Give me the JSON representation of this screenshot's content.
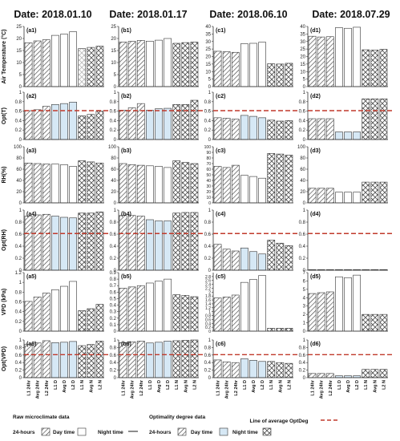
{
  "columns": [
    "Date: 2018.01.10",
    "Date: 2018.01.17",
    "Date: 2018.06.10",
    "Date: 2018.07.29"
  ],
  "categories": [
    "L1 24hr",
    "Avg 24hr",
    "L2 24hr",
    "L1 D",
    "Avg D",
    "L2 D",
    "L1 N",
    "Avg N",
    "L2 N"
  ],
  "colors": {
    "bar_outline": "#333333",
    "hatch": "#444444",
    "raw_day_fill": "#ffffff",
    "opt_day_fill": "#d6e8f5",
    "night_line": "#6f6f6f",
    "avg_line": "#c0392b"
  },
  "legend": {
    "raw_title": "Raw microclimate data",
    "opt_title": "Optimality degree data",
    "item_24h": "24-hours",
    "item_day": "Day time",
    "item_night": "Night time",
    "avg_line": "Line of average OptDeg"
  },
  "chart_data": [
    {
      "type": "bar",
      "row": 0,
      "col": 0,
      "panel": "(a1)",
      "ylabel": "Air Temperature (°C)",
      "ylim": [
        0,
        25
      ],
      "yticks": [
        0,
        5,
        10,
        15,
        20,
        25
      ],
      "values": [
        18.2,
        19.0,
        19.5,
        21.3,
        21.8,
        22.8,
        15.8,
        16.3,
        16.8
      ],
      "faint_first_night": true
    },
    {
      "type": "bar",
      "row": 0,
      "col": 1,
      "panel": "(b1)",
      "ylim": [
        0,
        25
      ],
      "yticks": [
        0,
        5,
        10,
        15,
        20,
        25
      ],
      "values": [
        18.5,
        18.8,
        19.2,
        18.9,
        19.3,
        20.0,
        18.0,
        18.3,
        18.5
      ]
    },
    {
      "type": "bar",
      "row": 0,
      "col": 2,
      "panel": "(c1)",
      "ylim": [
        0,
        40
      ],
      "yticks": [
        0,
        5,
        10,
        15,
        20,
        25,
        30,
        35,
        40
      ],
      "values": [
        23.5,
        23.2,
        22.8,
        28.5,
        28.8,
        29.5,
        15.2,
        15.0,
        15.5
      ]
    },
    {
      "type": "bar",
      "row": 0,
      "col": 3,
      "panel": "(d1)",
      "ylim": [
        0,
        40
      ],
      "yticks": [
        0,
        5,
        10,
        15,
        20,
        25,
        30,
        35,
        40
      ],
      "values": [
        33.5,
        33.0,
        33.2,
        39.2,
        38.8,
        39.5,
        24.5,
        24.3,
        24.8
      ]
    },
    {
      "type": "bar",
      "row": 1,
      "col": 0,
      "panel": "(a2)",
      "ylabel": "Opt(T)",
      "ylim": [
        0,
        1
      ],
      "yticks": [
        0,
        0.2,
        0.4,
        0.6,
        0.8,
        1
      ],
      "values": [
        0.61,
        0.63,
        0.7,
        0.74,
        0.76,
        0.79,
        0.5,
        0.53,
        0.6
      ],
      "avg_line": 0.61
    },
    {
      "type": "bar",
      "row": 1,
      "col": 1,
      "panel": "(b2)",
      "ylim": [
        0,
        1
      ],
      "yticks": [
        0,
        0.2,
        0.4,
        0.6,
        0.8,
        1
      ],
      "values": [
        0.62,
        0.67,
        0.76,
        0.62,
        0.65,
        0.66,
        0.74,
        0.74,
        0.83
      ],
      "avg_line": 0.61
    },
    {
      "type": "bar",
      "row": 1,
      "col": 2,
      "panel": "(c2)",
      "ylim": [
        0,
        1
      ],
      "yticks": [
        0,
        0.2,
        0.4,
        0.6,
        0.8,
        1
      ],
      "values": [
        0.46,
        0.45,
        0.43,
        0.51,
        0.49,
        0.46,
        0.41,
        0.39,
        0.4
      ],
      "avg_line": 0.61
    },
    {
      "type": "bar",
      "row": 1,
      "col": 3,
      "panel": "(d2)",
      "ylim": [
        0,
        1
      ],
      "yticks": [
        0,
        0.2,
        0.4,
        0.6,
        0.8,
        1
      ],
      "values": [
        0.44,
        0.44,
        0.44,
        0.16,
        0.16,
        0.16,
        0.86,
        0.86,
        0.86
      ],
      "avg_line": 0.61
    },
    {
      "type": "bar",
      "row": 2,
      "col": 0,
      "panel": "(a3)",
      "ylabel": "RH(%)",
      "ylim": [
        0,
        100
      ],
      "yticks": [
        0,
        20,
        40,
        60,
        80,
        100
      ],
      "values": [
        71,
        70,
        69,
        69,
        68,
        65,
        75,
        73,
        71
      ]
    },
    {
      "type": "bar",
      "row": 2,
      "col": 1,
      "panel": "(b3)",
      "ylim": [
        0,
        100
      ],
      "yticks": [
        0,
        20,
        40,
        60,
        80,
        100
      ],
      "values": [
        70,
        68,
        67,
        66,
        65,
        63,
        75,
        72,
        70
      ]
    },
    {
      "type": "bar",
      "row": 2,
      "col": 2,
      "panel": "(c3)",
      "ylim": [
        0,
        100
      ],
      "yticks": [
        0,
        10,
        20,
        30,
        40,
        50,
        60,
        70,
        80,
        90,
        100
      ],
      "values": [
        65,
        63,
        67,
        49,
        47,
        44,
        88,
        87,
        85
      ]
    },
    {
      "type": "bar",
      "row": 2,
      "col": 3,
      "panel": "(d3)",
      "ylim": [
        0,
        100
      ],
      "yticks": [
        0,
        20,
        40,
        60,
        80,
        100
      ],
      "values": [
        26,
        26,
        26,
        19,
        19,
        19,
        37,
        37,
        37
      ]
    },
    {
      "type": "bar",
      "row": 3,
      "col": 0,
      "panel": "(a4)",
      "ylabel": "Opt(RH)",
      "ylim": [
        0,
        1
      ],
      "yticks": [
        0,
        0.2,
        0.4,
        0.6,
        0.8,
        1
      ],
      "values": [
        0.9,
        0.92,
        0.93,
        0.9,
        0.88,
        0.87,
        0.95,
        0.95,
        0.97
      ],
      "avg_line": 0.61
    },
    {
      "type": "bar",
      "row": 3,
      "col": 1,
      "panel": "(b4)",
      "ylim": [
        0,
        1
      ],
      "yticks": [
        0,
        0.2,
        0.4,
        0.6,
        0.8,
        1
      ],
      "values": [
        0.91,
        0.91,
        0.9,
        0.84,
        0.82,
        0.82,
        0.95,
        0.96,
        0.96
      ],
      "avg_line": 0.61
    },
    {
      "type": "bar",
      "row": 3,
      "col": 2,
      "panel": "(c4)",
      "ylim": [
        0,
        1
      ],
      "yticks": [
        0,
        0.2,
        0.4,
        0.6,
        0.8,
        1
      ],
      "values": [
        0.43,
        0.35,
        0.32,
        0.37,
        0.31,
        0.27,
        0.5,
        0.45,
        0.41
      ],
      "avg_line": 0.61
    },
    {
      "type": "bar",
      "row": 3,
      "col": 3,
      "panel": "(d4)",
      "ylim": [
        0,
        1
      ],
      "yticks": [
        0,
        0.2,
        0.4,
        0.6,
        0.8,
        1
      ],
      "values": [
        0.01,
        0.01,
        0.01,
        0.01,
        0.01,
        0.01,
        0.01,
        0.01,
        0.01
      ],
      "avg_line": 0.61
    },
    {
      "type": "bar",
      "row": 4,
      "col": 0,
      "panel": "(a5)",
      "ylabel": "VPD (kPa)",
      "ylim": [
        0,
        1.2
      ],
      "yticks": [
        0,
        0.2,
        0.4,
        0.6,
        0.8,
        1,
        1.2
      ],
      "values": [
        0.61,
        0.7,
        0.78,
        0.85,
        0.92,
        1.02,
        0.42,
        0.46,
        0.55
      ]
    },
    {
      "type": "bar",
      "row": 4,
      "col": 1,
      "panel": "(b5)",
      "ylim": [
        0,
        0.9
      ],
      "yticks": [
        0,
        0.1,
        0.2,
        0.3,
        0.4,
        0.5,
        0.6,
        0.7,
        0.8,
        0.9
      ],
      "values": [
        0.66,
        0.68,
        0.7,
        0.74,
        0.77,
        0.8,
        0.56,
        0.55,
        0.53
      ]
    },
    {
      "type": "bar",
      "row": 4,
      "col": 2,
      "panel": "(c5)",
      "ylim": [
        0,
        3
      ],
      "yticks": [
        0,
        0.2,
        0.4,
        0.6,
        0.8,
        1,
        1.2,
        1.4,
        1.6,
        1.8,
        2,
        2.2,
        2.4,
        2.6,
        2.8
      ],
      "values": [
        1.7,
        1.75,
        1.85,
        2.5,
        2.65,
        2.85,
        0.15,
        0.15,
        0.15
      ]
    },
    {
      "type": "bar",
      "row": 4,
      "col": 3,
      "panel": "(d5)",
      "ylim": [
        0,
        7
      ],
      "yticks": [
        0,
        1,
        2,
        3,
        4,
        5,
        6,
        7
      ],
      "values": [
        4.5,
        4.6,
        4.7,
        6.5,
        6.4,
        6.7,
        2.0,
        2.0,
        2.0
      ]
    },
    {
      "type": "bar",
      "row": 5,
      "col": 0,
      "panel": "(a6)",
      "ylabel": "Opt(VPD)",
      "ylim": [
        0,
        1
      ],
      "yticks": [
        0,
        0.2,
        0.4,
        0.6,
        0.8,
        1
      ],
      "values": [
        0.89,
        0.92,
        0.98,
        0.93,
        0.94,
        0.96,
        0.85,
        0.88,
        0.97
      ],
      "avg_line": 0.61
    },
    {
      "type": "bar",
      "row": 5,
      "col": 1,
      "panel": "(b6)",
      "ylim": [
        0,
        1
      ],
      "yticks": [
        0,
        0.2,
        0.4,
        0.6,
        0.8,
        1
      ],
      "values": [
        0.93,
        0.95,
        0.97,
        0.92,
        0.94,
        0.97,
        0.98,
        0.99,
        1.0
      ],
      "avg_line": 0.61
    },
    {
      "type": "bar",
      "row": 5,
      "col": 2,
      "panel": "(c6)",
      "ylim": [
        0,
        1
      ],
      "yticks": [
        0,
        0.2,
        0.4,
        0.6,
        0.8,
        1
      ],
      "values": [
        0.47,
        0.42,
        0.4,
        0.5,
        0.46,
        0.43,
        0.43,
        0.4,
        0.38
      ],
      "avg_line": 0.61
    },
    {
      "type": "bar",
      "row": 5,
      "col": 3,
      "panel": "(d6)",
      "ylim": [
        0,
        1
      ],
      "yticks": [
        0,
        0.2,
        0.4,
        0.6,
        0.8,
        1
      ],
      "values": [
        0.11,
        0.11,
        0.11,
        0.05,
        0.05,
        0.05,
        0.22,
        0.22,
        0.22
      ],
      "avg_line": 0.61
    }
  ]
}
